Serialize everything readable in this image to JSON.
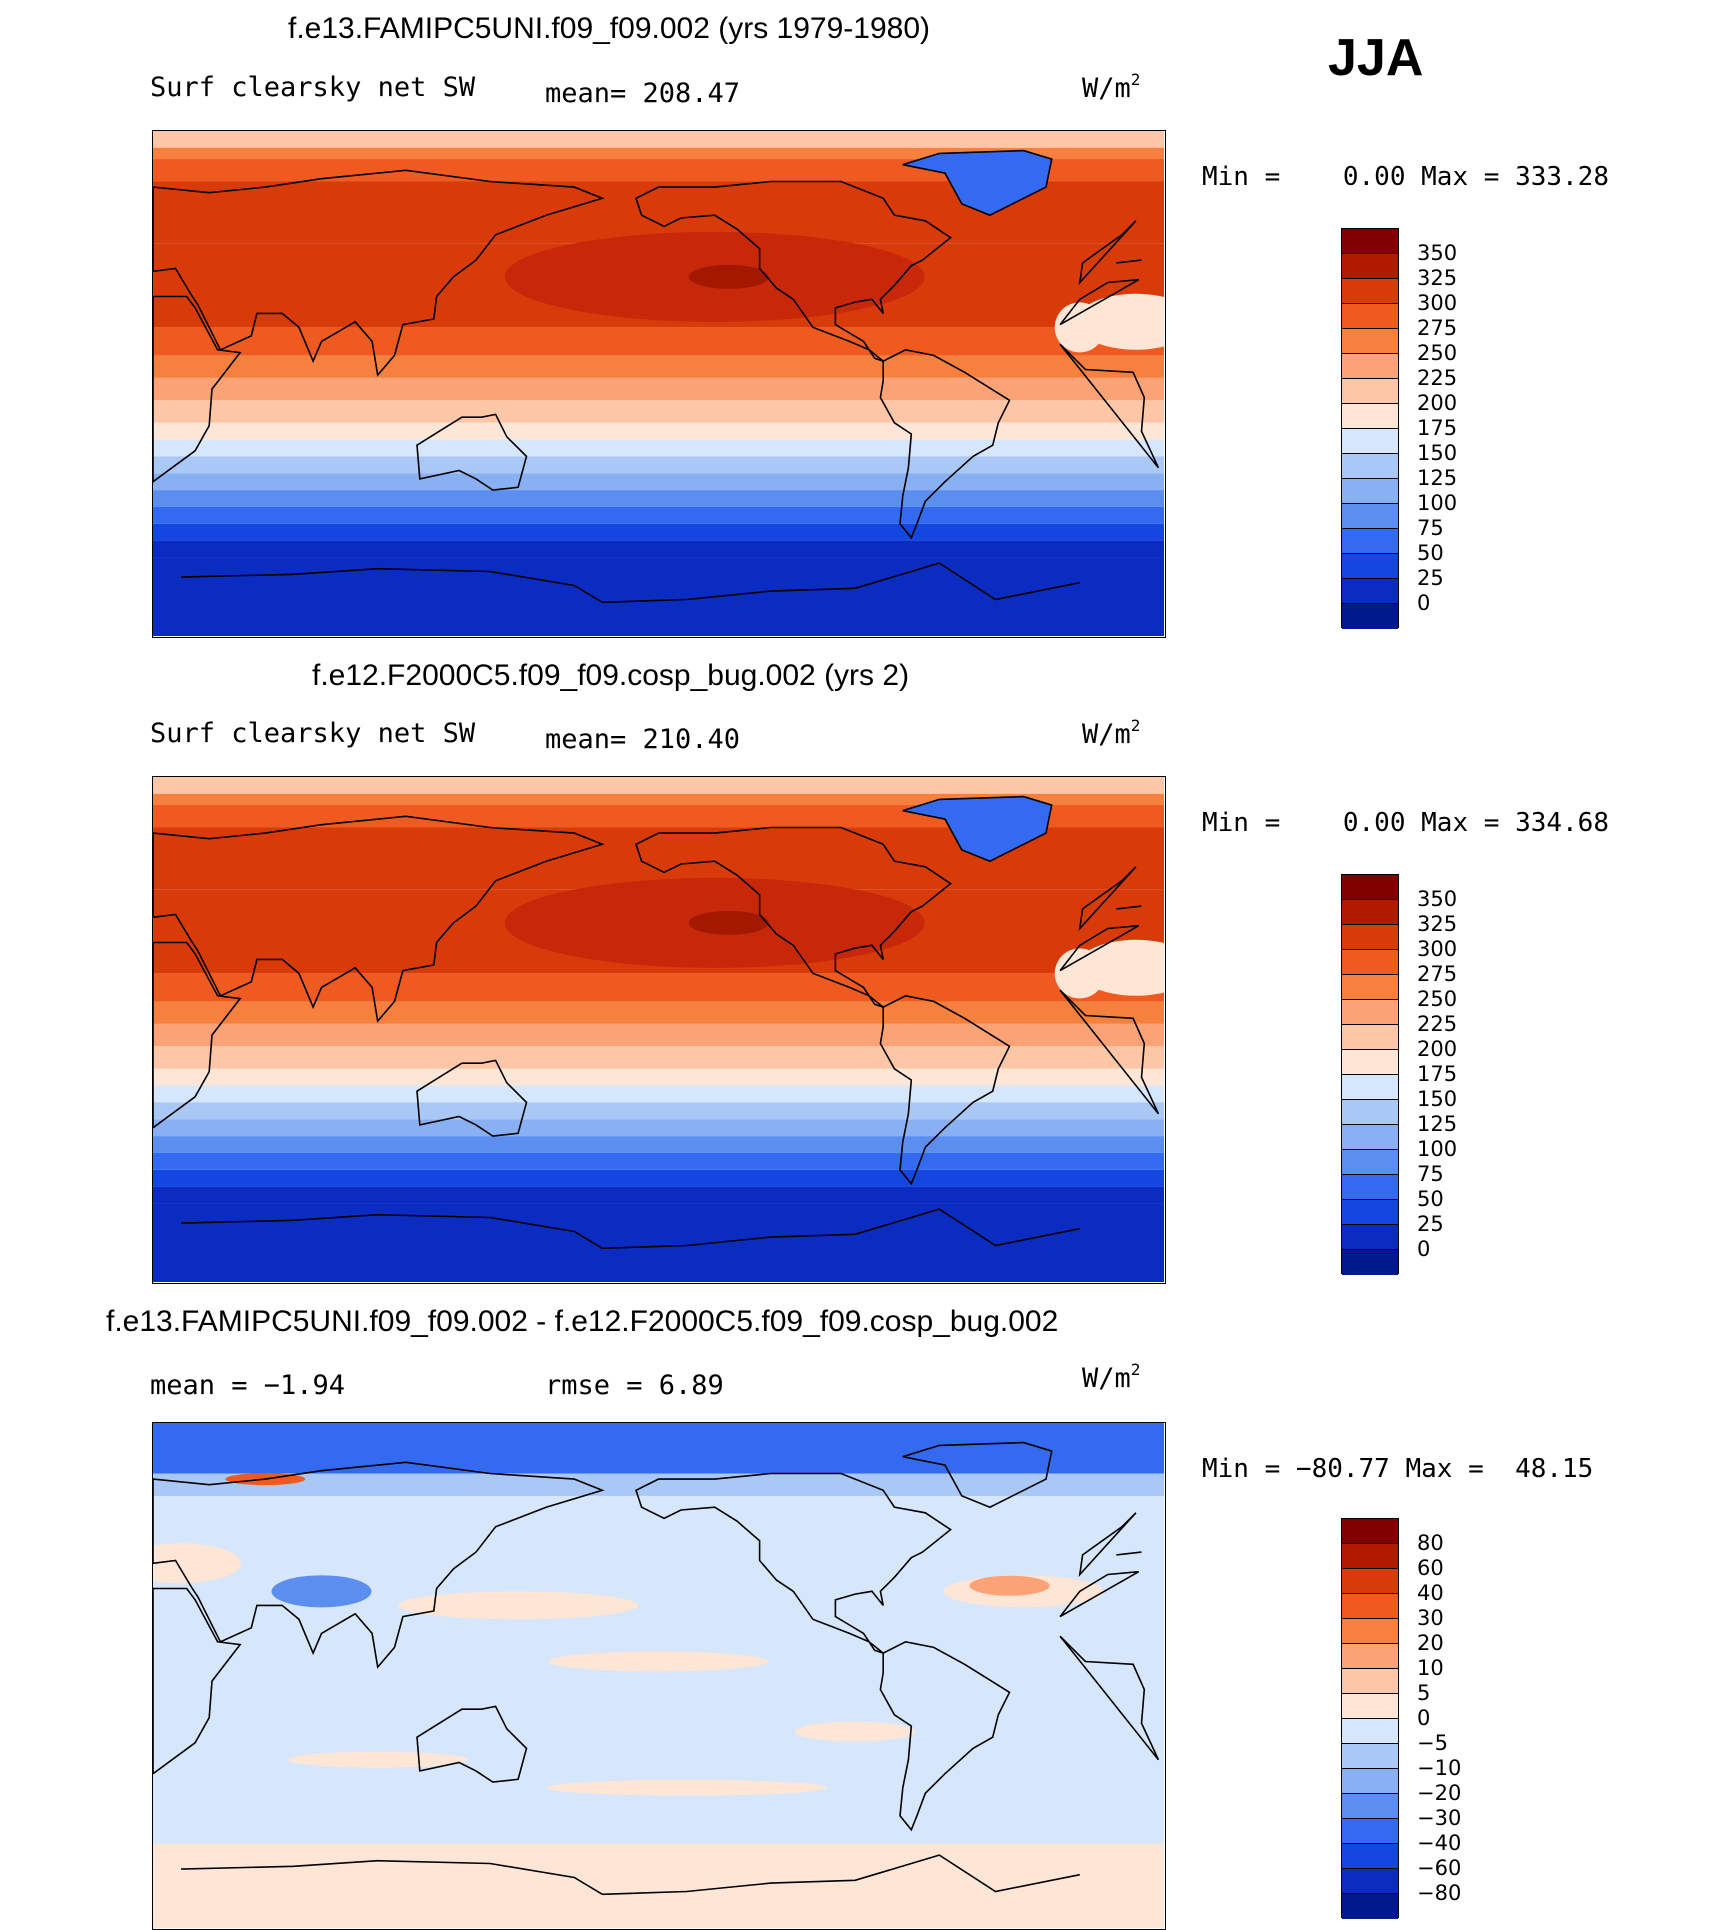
{
  "season": "JJA",
  "panels": [
    {
      "title": "f.e13.FAMIPC5UNI.f09_f09.002 (yrs 1979-1980)",
      "left_label": "Surf clearsky net SW",
      "center_label": "mean= 208.47",
      "units_base": "W/m",
      "units_sup": "2",
      "minmax": "Min =    0.00 Max = 333.28",
      "legend": {
        "labels": [
          "350",
          "325",
          "300",
          "275",
          "250",
          "225",
          "200",
          "175",
          "150",
          "125",
          "100",
          "75",
          "50",
          "25",
          "0"
        ],
        "colors": [
          "#800000",
          "#b21a00",
          "#d83a0a",
          "#ee5a20",
          "#f6813f",
          "#fba276",
          "#fdc6a6",
          "#fde6d6",
          "#d6e6fb",
          "#aac8f6",
          "#88b0f2",
          "#5c8ef0",
          "#346af0",
          "#1446e0",
          "#0a2cc0",
          "#001a8c"
        ]
      },
      "field_mean": 208.47,
      "field_min": 0.0,
      "field_max": 333.28
    },
    {
      "title": "f.e12.F2000C5.f09_f09.cosp_bug.002 (yrs 2)",
      "left_label": "Surf clearsky net SW",
      "center_label": "mean= 210.40",
      "units_base": "W/m",
      "units_sup": "2",
      "minmax": "Min =    0.00 Max = 334.68",
      "legend": {
        "labels": [
          "350",
          "325",
          "300",
          "275",
          "250",
          "225",
          "200",
          "175",
          "150",
          "125",
          "100",
          "75",
          "50",
          "25",
          "0"
        ],
        "colors": [
          "#800000",
          "#b21a00",
          "#d83a0a",
          "#ee5a20",
          "#f6813f",
          "#fba276",
          "#fdc6a6",
          "#fde6d6",
          "#d6e6fb",
          "#aac8f6",
          "#88b0f2",
          "#5c8ef0",
          "#346af0",
          "#1446e0",
          "#0a2cc0",
          "#001a8c"
        ]
      },
      "field_mean": 210.4,
      "field_min": 0.0,
      "field_max": 334.68
    },
    {
      "title": "f.e13.FAMIPC5UNI.f09_f09.002 - f.e12.F2000C5.f09_f09.cosp_bug.002",
      "left_label": "mean =   −1.94",
      "center_label": "rmse =    6.89",
      "units_base": "W/m",
      "units_sup": "2",
      "minmax": "Min = −80.77 Max =  48.15",
      "legend": {
        "labels": [
          "80",
          "60",
          "40",
          "30",
          "20",
          "10",
          "5",
          "0",
          "−5",
          "−10",
          "−20",
          "−30",
          "−40",
          "−60",
          "−80"
        ],
        "colors": [
          "#800000",
          "#b21a00",
          "#d83a0a",
          "#ee5a20",
          "#f6813f",
          "#fba276",
          "#fdc6a6",
          "#fde6d6",
          "#d6e6fb",
          "#aac8f6",
          "#88b0f2",
          "#5c8ef0",
          "#346af0",
          "#1446e0",
          "#0a2cc0",
          "#001a8c"
        ]
      },
      "field_mean": -1.94,
      "field_min": -80.77,
      "field_max": 48.15
    }
  ]
}
